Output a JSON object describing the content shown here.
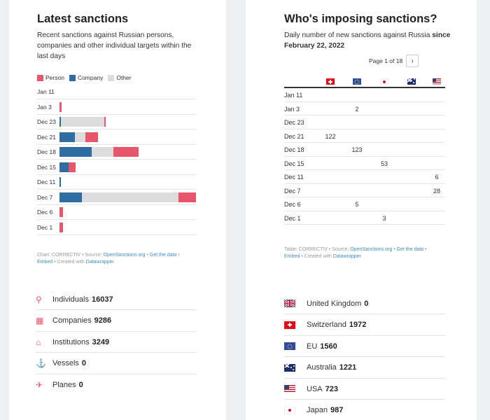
{
  "left": {
    "title": "Latest sanctions",
    "subtitle": "Recent sanctions against Russian persons, companies and other individual targets within the last days",
    "chart_data": {
      "type": "bar",
      "stacked": true,
      "orientation": "horizontal",
      "categories": [
        "Jan 11",
        "Jan 3",
        "Dec 23",
        "Dec 21",
        "Dec 18",
        "Dec 15",
        "Dec 11",
        "Dec 7",
        "Dec 6",
        "Dec 1"
      ],
      "series": [
        {
          "name": "Company",
          "color": "#2f6ca3",
          "values": [
            0,
            0,
            2,
            21,
            45,
            13,
            2,
            31,
            0,
            0
          ]
        },
        {
          "name": "Other",
          "color": "#dcdcdc",
          "values": [
            0,
            0,
            60,
            15,
            30,
            0,
            0,
            134,
            0,
            0
          ]
        },
        {
          "name": "Person",
          "color": "#e8566b",
          "values": [
            0,
            3,
            2,
            17,
            35,
            9,
            0,
            24,
            5,
            5
          ]
        }
      ],
      "xlim": [
        0,
        190
      ],
      "legend": "top-left",
      "grid": false
    },
    "legend": {
      "person": "Person",
      "company": "Company",
      "other": "Other"
    },
    "note": {
      "line1_prefix": "Chart: CORRECTIV • Source: ",
      "source_link": "OpenSanctions.org",
      "sep1": " • ",
      "get_data": "Get the data",
      "sep2": " •",
      "embed": "Embed",
      "created": " • Created with ",
      "dw": "Datawrapper"
    },
    "stats": [
      {
        "icon": "person-icon",
        "name": "Individuals",
        "value": "16037"
      },
      {
        "icon": "building-icon",
        "name": "Companies",
        "value": "9286"
      },
      {
        "icon": "institution-icon",
        "name": "Institutions",
        "value": "3249"
      },
      {
        "icon": "anchor-icon",
        "name": "Vessels",
        "value": "0"
      },
      {
        "icon": "plane-icon",
        "name": "Planes",
        "value": "0"
      }
    ]
  },
  "right": {
    "title": "Who's imposing sanctions?",
    "subtitle_plain": "Daily number of new sanctions against Russia ",
    "subtitle_bold": "since February 22, 2022",
    "pager": {
      "label": "Page 1 of 18",
      "next": "›"
    },
    "table": {
      "flags": [
        "switzerland-flag-icon",
        "eu-flag-icon",
        "japan-flag-icon",
        "australia-flag-icon",
        "usa-flag-icon"
      ],
      "rows": [
        {
          "date": "Jan 11",
          "values": [
            "",
            "",
            "",
            "",
            ""
          ]
        },
        {
          "date": "Jan 3",
          "values": [
            "",
            "2",
            "",
            "",
            ""
          ]
        },
        {
          "date": "Dec 23",
          "values": [
            "",
            "",
            "",
            "",
            ""
          ]
        },
        {
          "date": "Dec 21",
          "values": [
            "122",
            "",
            "",
            "",
            ""
          ]
        },
        {
          "date": "Dec 18",
          "values": [
            "",
            "123",
            "",
            "",
            ""
          ]
        },
        {
          "date": "Dec 15",
          "values": [
            "",
            "",
            "53",
            "",
            ""
          ]
        },
        {
          "date": "Dec 11",
          "values": [
            "",
            "",
            "",
            "",
            "6"
          ]
        },
        {
          "date": "Dec 7",
          "values": [
            "",
            "",
            "",
            "",
            "28"
          ]
        },
        {
          "date": "Dec 6",
          "values": [
            "",
            "5",
            "",
            "",
            ""
          ]
        },
        {
          "date": "Dec 1",
          "values": [
            "",
            "",
            "3",
            "",
            ""
          ]
        }
      ]
    },
    "note": {
      "line1_prefix": "Table: CORRECTIV • Source: ",
      "source_link": "OpenSanctions.org",
      "sep1": " • ",
      "get_data": "Get the data",
      "sep2": " •",
      "embed": "Embed",
      "created": " • Created with ",
      "dw": "Datawrapper"
    },
    "countries": [
      {
        "flag": "uk",
        "name": "United Kingdom",
        "value": "0"
      },
      {
        "flag": "ch",
        "name": "Switzerland",
        "value": "1972"
      },
      {
        "flag": "eu",
        "name": "EU",
        "value": "1560"
      },
      {
        "flag": "au",
        "name": "Australia",
        "value": "1221"
      },
      {
        "flag": "us",
        "name": "USA",
        "value": "723"
      },
      {
        "flag": "jp",
        "name": "Japan",
        "value": "987"
      }
    ]
  }
}
